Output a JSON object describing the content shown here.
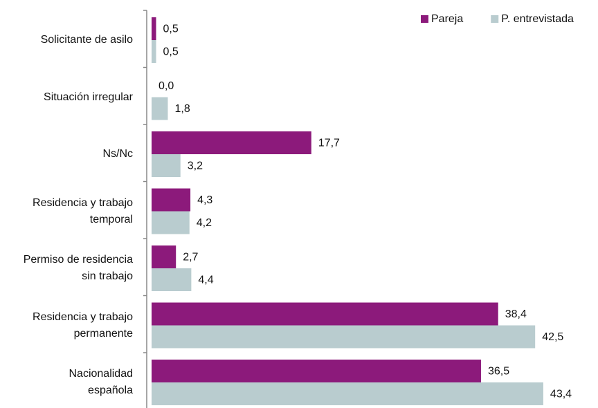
{
  "chart_data": {
    "type": "hbar",
    "categories": [
      "Solicitante de asilo",
      "Situación irregular",
      "Ns/Nc",
      "Residencia y trabajo\ntemporal",
      "Permiso de residencia\nsin trabajo",
      "Residencia y trabajo\npermanente",
      "Nacionalidad\nespañola"
    ],
    "series": [
      {
        "name": "Pareja",
        "color": "#8c1a7b",
        "values": [
          0.5,
          0.0,
          17.7,
          4.3,
          2.7,
          38.4,
          36.5
        ],
        "value_labels": [
          "0,5",
          "0,0",
          "17,7",
          "4,3",
          "2,7",
          "38,4",
          "36,5"
        ]
      },
      {
        "name": "P. entrevistada",
        "color": "#b9cccf",
        "values": [
          0.5,
          1.8,
          3.2,
          4.2,
          4.4,
          42.5,
          43.4
        ],
        "value_labels": [
          "0,5",
          "1,8",
          "3,2",
          "4,2",
          "4,4",
          "42,5",
          "43,4"
        ]
      }
    ],
    "legend": "top-right"
  }
}
